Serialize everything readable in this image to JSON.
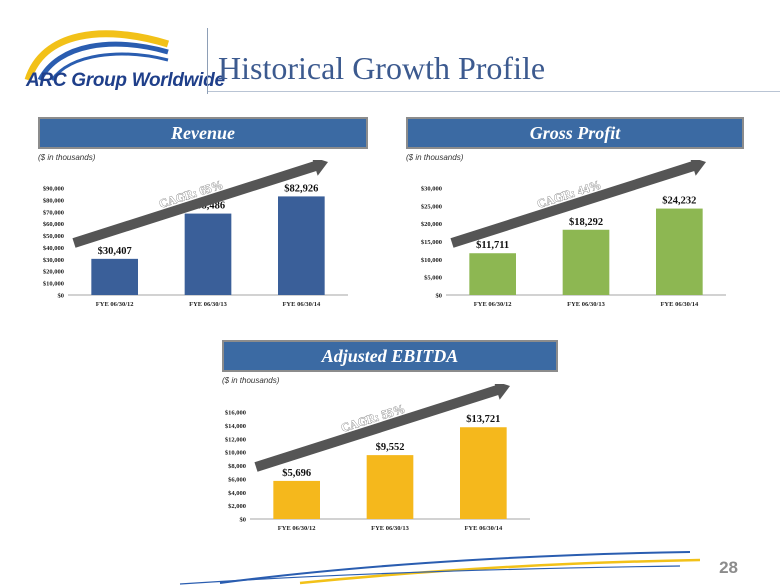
{
  "header": {
    "logo_text": "ARC Group Worldwide",
    "title": "Historical Growth Profile"
  },
  "page_number": "28",
  "colors": {
    "revenue": "#3a5f99",
    "gross_profit": "#8db752",
    "ebitda": "#f5b81c",
    "banner": "#3b6aa3",
    "arrow": "#555555"
  },
  "chart_data": [
    {
      "type": "bar",
      "title": "Revenue",
      "units_note": "($ in thousands)",
      "categories": [
        "FYE 06/30/12",
        "FYE 06/30/13",
        "FYE 06/30/14"
      ],
      "values": [
        30407,
        68486,
        82926
      ],
      "value_labels": [
        "$30,407",
        "$68,486",
        "$82,926"
      ],
      "ylim": [
        0,
        90000
      ],
      "yticks": [
        "$0",
        "$10,000",
        "$20,000",
        "$30,000",
        "$40,000",
        "$50,000",
        "$60,000",
        "$70,000",
        "$80,000",
        "$90,000"
      ],
      "annotation": "CAGR: 65%",
      "color": "#3a5f99"
    },
    {
      "type": "bar",
      "title": "Gross Profit",
      "units_note": "($ in thousands)",
      "categories": [
        "FYE 06/30/12",
        "FYE 06/30/13",
        "FYE 06/30/14"
      ],
      "values": [
        11711,
        18292,
        24232
      ],
      "value_labels": [
        "$11,711",
        "$18,292",
        "$24,232"
      ],
      "ylim": [
        0,
        30000
      ],
      "yticks": [
        "$0",
        "$5,000",
        "$10,000",
        "$15,000",
        "$20,000",
        "$25,000",
        "$30,000"
      ],
      "annotation": "CAGR: 44%",
      "color": "#8db752"
    },
    {
      "type": "bar",
      "title": "Adjusted EBITDA",
      "units_note": "($ in thousands)",
      "categories": [
        "FYE 06/30/12",
        "FYE 06/30/13",
        "FYE 06/30/14"
      ],
      "values": [
        5696,
        9552,
        13721
      ],
      "value_labels": [
        "$5,696",
        "$9,552",
        "$13,721"
      ],
      "ylim": [
        0,
        16000
      ],
      "yticks": [
        "$0",
        "$2,000",
        "$4,000",
        "$6,000",
        "$8,000",
        "$10,000",
        "$12,000",
        "$14,000",
        "$16,000"
      ],
      "annotation": "CAGR: 55%",
      "color": "#f5b81c"
    }
  ]
}
